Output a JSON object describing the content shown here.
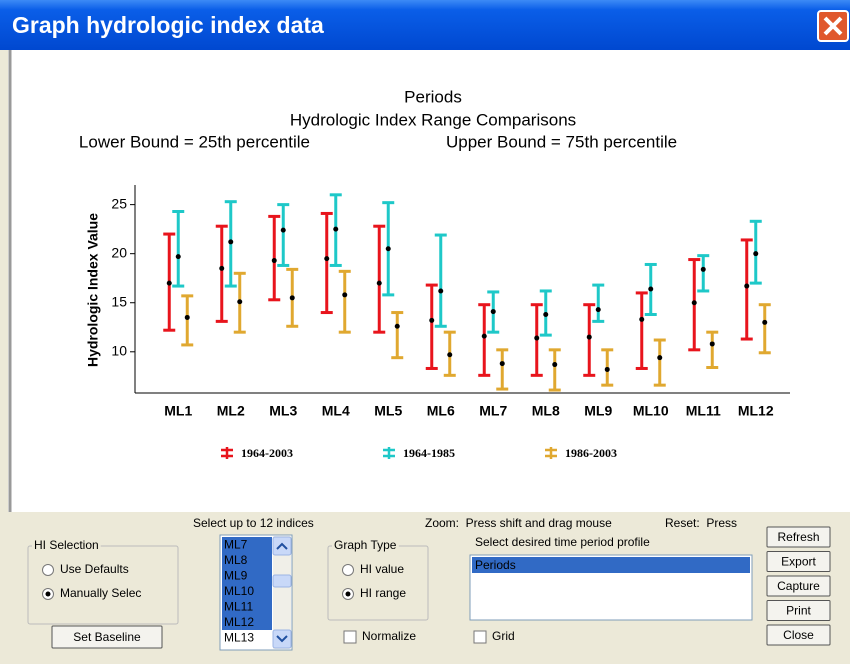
{
  "window": {
    "title": "Graph hydrologic index data"
  },
  "chart_data": {
    "type": "errorbar",
    "title": "Periods",
    "subtitle": [
      "Hydrologic Index Range Comparisons",
      "Lower Bound = 25th percentile",
      "Upper Bound = 75th percentile"
    ],
    "y_label": "Hydrologic Index Value",
    "categories": [
      "ML1",
      "ML2",
      "ML3",
      "ML4",
      "ML5",
      "ML6",
      "ML7",
      "ML8",
      "ML9",
      "ML10",
      "ML11",
      "ML12"
    ],
    "series": [
      {
        "name": "1964-2003",
        "color": "#e8141c",
        "lower": [
          12.2,
          13.1,
          15.3,
          14.0,
          12.0,
          8.3,
          7.6,
          7.6,
          7.6,
          8.3,
          10.2,
          11.3
        ],
        "values": [
          17.0,
          18.5,
          19.3,
          19.5,
          17.0,
          13.2,
          11.6,
          11.4,
          11.5,
          13.3,
          15.0,
          16.7
        ],
        "upper": [
          22.0,
          22.8,
          23.8,
          24.1,
          22.8,
          16.8,
          14.8,
          14.8,
          14.8,
          16.0,
          19.4,
          21.4
        ]
      },
      {
        "name": "1964-1985",
        "color": "#1ec8c8",
        "lower": [
          16.7,
          16.7,
          18.8,
          18.8,
          15.8,
          12.6,
          12.0,
          11.7,
          13.1,
          13.8,
          16.2,
          17.0
        ],
        "values": [
          19.7,
          21.2,
          22.4,
          22.5,
          20.5,
          16.2,
          14.1,
          13.8,
          14.3,
          16.4,
          18.4,
          20.0
        ],
        "upper": [
          24.3,
          25.3,
          25.0,
          26.0,
          25.2,
          21.9,
          16.1,
          16.2,
          16.8,
          18.9,
          19.8,
          23.3
        ]
      },
      {
        "name": "1986-2003",
        "color": "#e0a830",
        "lower": [
          10.7,
          12.0,
          12.6,
          12.0,
          9.4,
          7.6,
          6.2,
          6.1,
          6.6,
          6.6,
          8.4,
          9.9
        ],
        "values": [
          13.5,
          15.1,
          15.5,
          15.8,
          12.6,
          9.7,
          8.8,
          8.7,
          8.2,
          9.4,
          10.8,
          13.0
        ],
        "upper": [
          15.7,
          18.0,
          18.4,
          18.2,
          14.0,
          12.0,
          10.2,
          10.2,
          10.2,
          11.2,
          12.0,
          14.8
        ]
      }
    ],
    "ylim": [
      5.8,
      27
    ],
    "yticks": [
      10,
      15,
      20,
      25
    ],
    "grid": false
  },
  "controls": {
    "hi_selection": {
      "title": "HI Selection",
      "options": [
        "Use Defaults",
        "Manually Selec"
      ],
      "selected": 1
    },
    "set_baseline": "Set Baseline",
    "indices_label": "Select up to 12 indices",
    "indices": [
      "ML7",
      "ML8",
      "ML9",
      "ML10",
      "ML11",
      "ML12",
      "ML13"
    ],
    "selected_indices": [
      0,
      1,
      2,
      3,
      4,
      5
    ],
    "graph_type": {
      "title": "Graph Type",
      "options": [
        "HI value",
        "HI range"
      ],
      "selected": 1
    },
    "normalize": {
      "label": "Normalize",
      "checked": false
    },
    "zoom_hint": "Zoom:  Press shift and drag mouse",
    "reset_hint": "Reset:  Press",
    "period_label": "Select desired time period profile",
    "periods": [
      "Periods"
    ],
    "grid": {
      "label": "Grid",
      "checked": false
    },
    "buttons": [
      "Refresh",
      "Export",
      "Capture",
      "Print",
      "Close"
    ]
  }
}
